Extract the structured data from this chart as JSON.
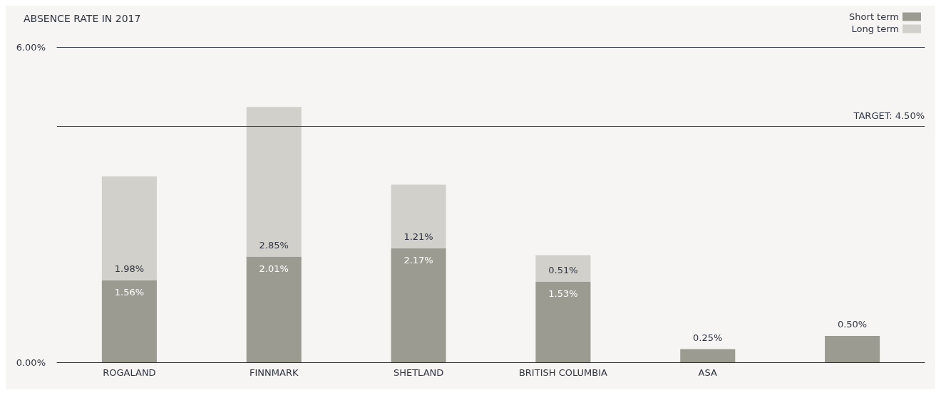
{
  "chart_data": {
    "type": "bar",
    "title": "ABSENCE RATE IN 2017",
    "stacked": true,
    "categories": [
      "ROGALAND",
      "FINNMARK",
      "SHETLAND",
      "BRITISH COLUMBIA",
      "ASA",
      null
    ],
    "series": [
      {
        "name": "Short term",
        "color": "#9c9b92",
        "values": [
          1.56,
          2.01,
          2.17,
          1.53,
          0.25,
          0.5
        ],
        "value_labels": [
          "1.56%",
          "2.01%",
          "2.17%",
          "1.53%",
          "0.25%",
          "0.50%"
        ]
      },
      {
        "name": "Long term",
        "color": "#d1d0cb",
        "values": [
          1.98,
          2.85,
          1.21,
          0.51,
          null,
          null
        ],
        "value_labels": [
          "1.98%",
          "2.85%",
          "1.21%",
          "0.51%",
          null,
          null
        ]
      }
    ],
    "ylim": [
      0,
      6
    ],
    "yticks": [
      {
        "value": 0,
        "label": "0.00%"
      },
      {
        "value": 6,
        "label": "6.00%"
      }
    ],
    "legend": "top right",
    "ref_lines": [
      {
        "axis": "y",
        "value": 4.5,
        "label": "TARGET: 4.50%",
        "color": "#2e3440"
      }
    ]
  }
}
